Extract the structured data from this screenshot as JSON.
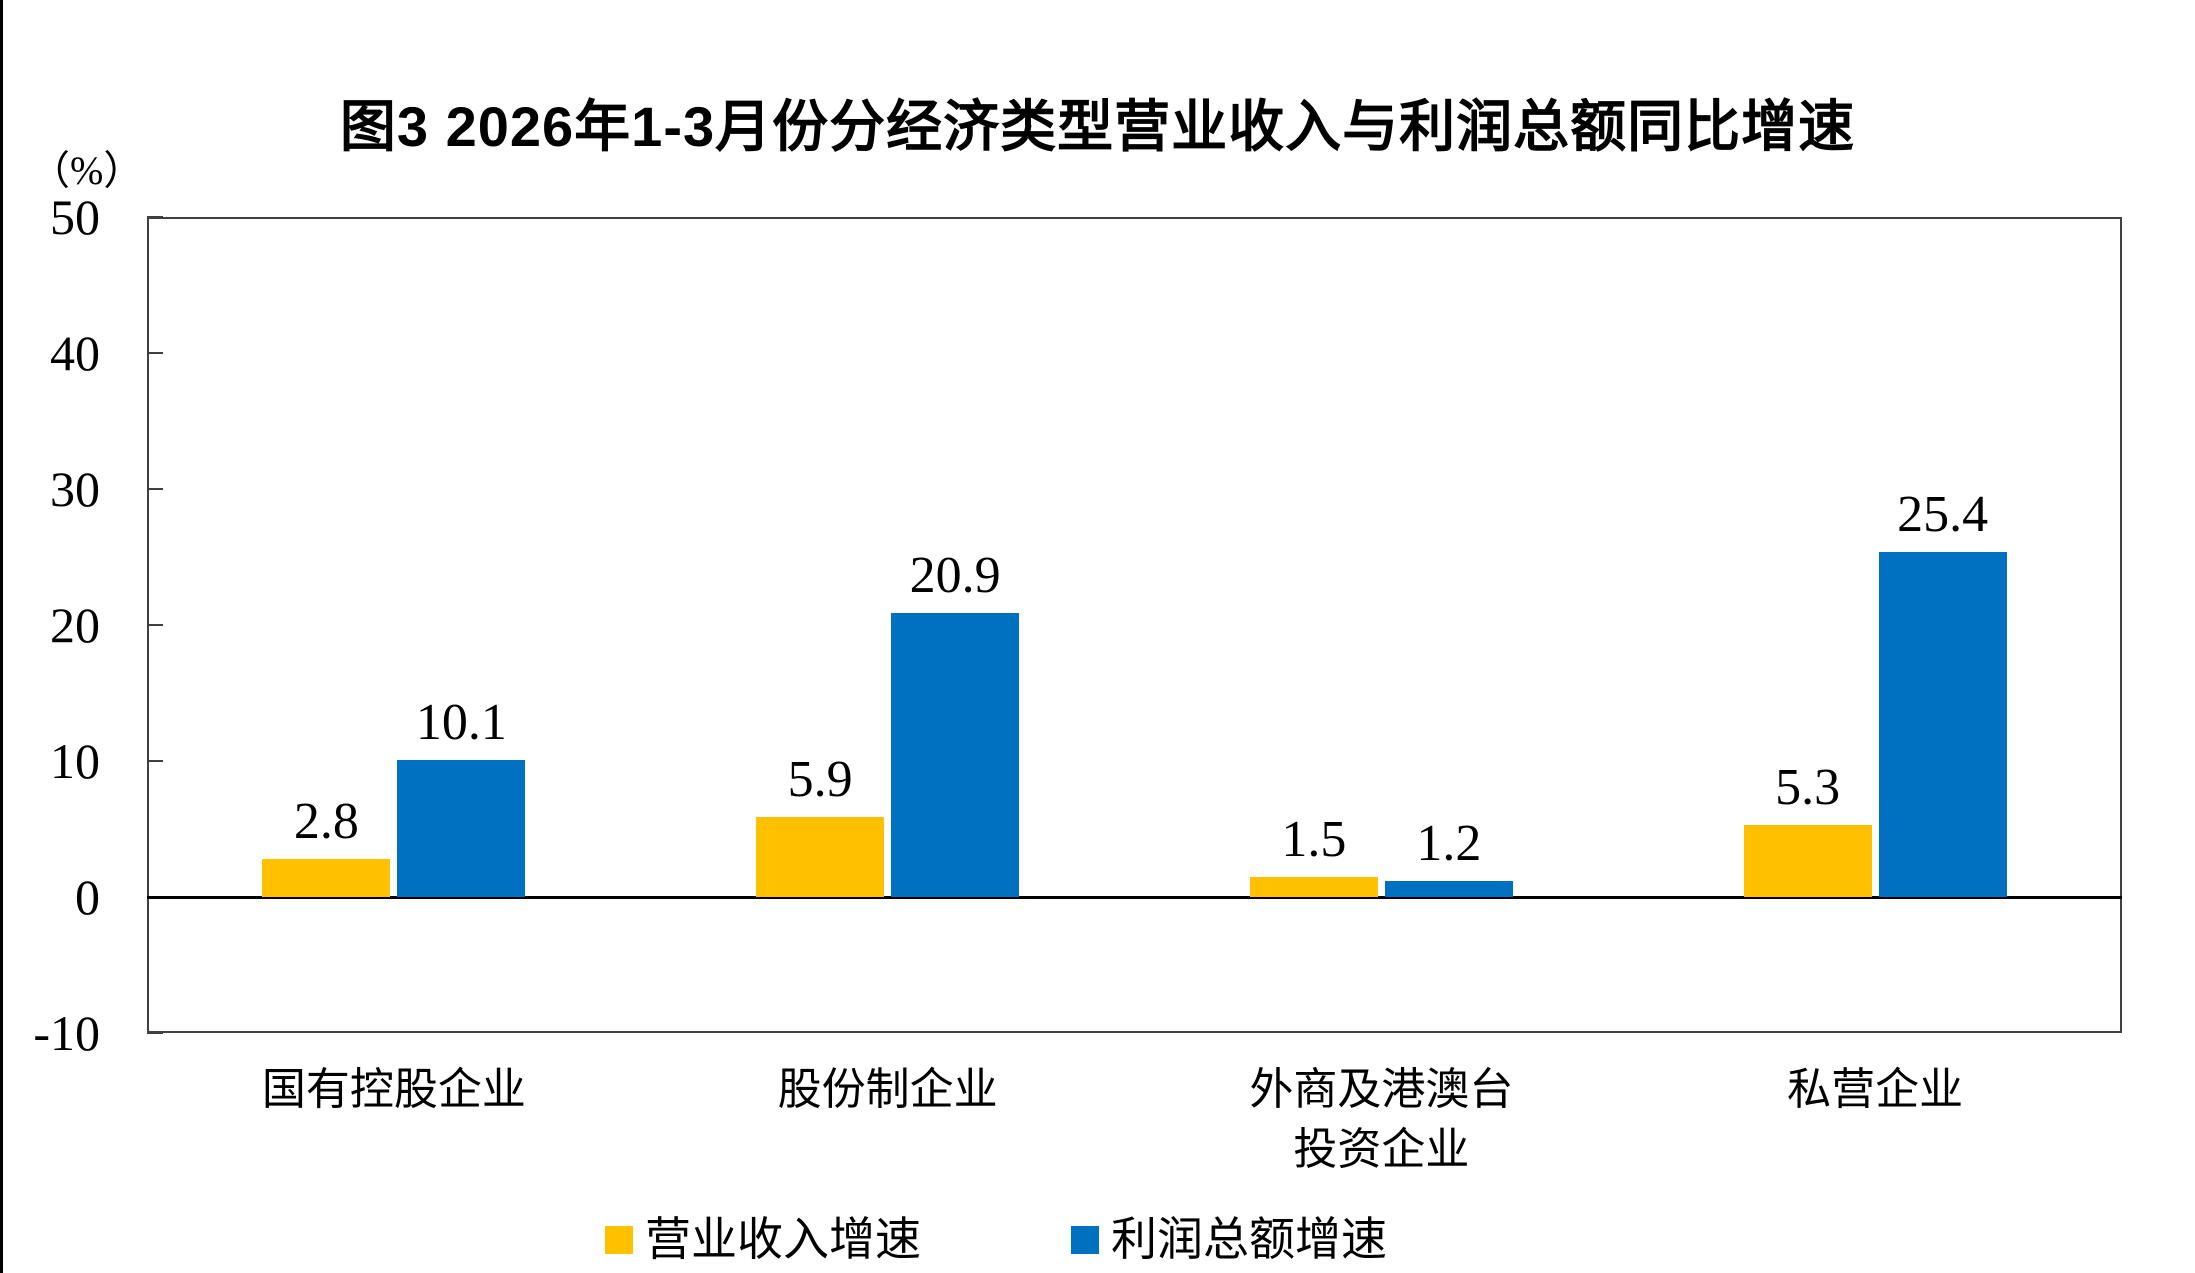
{
  "chart_data": {
    "type": "bar",
    "title": "图3 2026年1-3月份分经济类型营业收入与利润总额同比增速",
    "unit_label": "（%）",
    "categories": [
      "国有控股企业",
      "股份制企业",
      "外商及港澳台投资企业",
      "私营企业"
    ],
    "category_label_lines": [
      [
        "国有控股企业"
      ],
      [
        "股份制企业"
      ],
      [
        "外商及港澳台",
        "投资企业"
      ],
      [
        "私营企业"
      ]
    ],
    "series": [
      {
        "name": "营业收入增速",
        "color": "#FFC000",
        "values": [
          2.8,
          5.9,
          1.5,
          5.3
        ]
      },
      {
        "name": "利润总额增速",
        "color": "#0070C0",
        "values": [
          10.1,
          20.9,
          1.2,
          25.4
        ]
      }
    ],
    "value_labels": {
      "营业收入增速": [
        "2.8",
        "5.9",
        "1.5",
        "5.3"
      ],
      "利润总额增速": [
        "10.1",
        "20.9",
        "1.2",
        "25.4"
      ]
    },
    "ylim": [
      -10,
      50
    ],
    "yticks": [
      50,
      40,
      30,
      20,
      10,
      0,
      "-10"
    ],
    "ytick_values": [
      50,
      40,
      30,
      20,
      10,
      0,
      -10
    ],
    "grid": false,
    "legend_position": "bottom",
    "axis_color": "#404040",
    "zero_line_color": "#000000"
  }
}
